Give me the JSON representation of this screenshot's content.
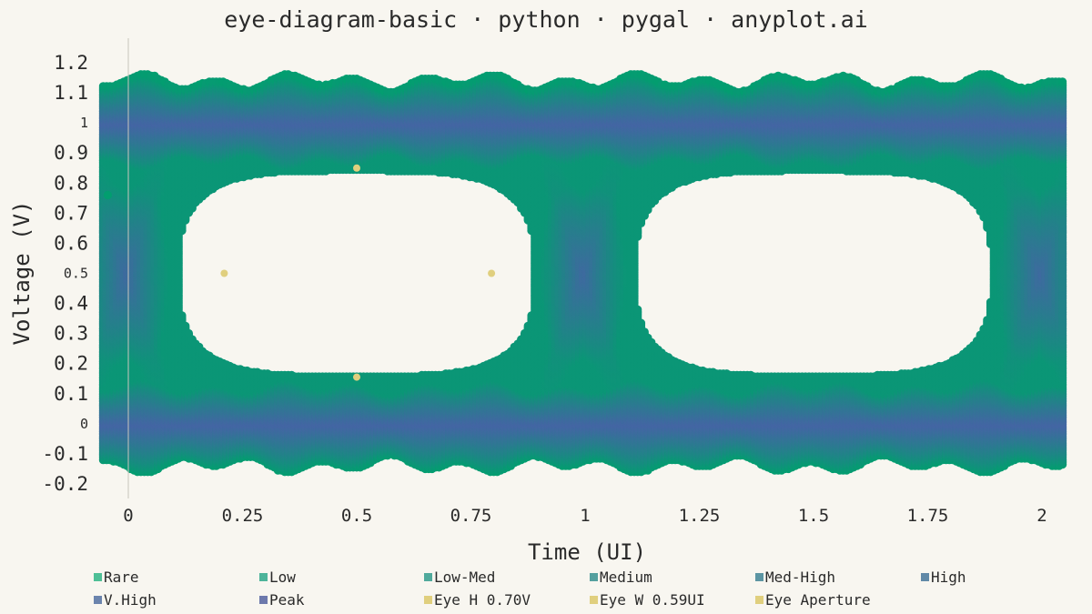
{
  "chart_data": {
    "type": "heatmap",
    "title": "eye-diagram-basic · python · pygal · anyplot.ai",
    "xlabel": "Time (UI)",
    "ylabel": "Voltage (V)",
    "xlim": [
      0,
      2
    ],
    "ylim": [
      -0.2,
      1.2
    ],
    "x_ticks": [
      {
        "value": 0,
        "label": "0"
      },
      {
        "value": 0.25,
        "label": "0.25"
      },
      {
        "value": 0.5,
        "label": "0.5"
      },
      {
        "value": 0.75,
        "label": "0.75"
      },
      {
        "value": 1,
        "label": "1"
      },
      {
        "value": 1.25,
        "label": "1.25"
      },
      {
        "value": 1.5,
        "label": "1.5"
      },
      {
        "value": 1.75,
        "label": "1.75"
      },
      {
        "value": 2,
        "label": "2"
      }
    ],
    "y_ticks": [
      {
        "value": 1.2,
        "label": "1.2",
        "major": true
      },
      {
        "value": 1.1,
        "label": "1.1",
        "major": true
      },
      {
        "value": 1.0,
        "label": "1",
        "major": false
      },
      {
        "value": 0.9,
        "label": "0.9",
        "major": true
      },
      {
        "value": 0.8,
        "label": "0.8",
        "major": true
      },
      {
        "value": 0.7,
        "label": "0.7",
        "major": true
      },
      {
        "value": 0.6,
        "label": "0.6",
        "major": true
      },
      {
        "value": 0.5,
        "label": "0.5",
        "major": false
      },
      {
        "value": 0.4,
        "label": "0.4",
        "major": true
      },
      {
        "value": 0.3,
        "label": "0.3",
        "major": true
      },
      {
        "value": 0.2,
        "label": "0.2",
        "major": true
      },
      {
        "value": 0.1,
        "label": "0.1",
        "major": true
      },
      {
        "value": 0.0,
        "label": "0",
        "major": false
      },
      {
        "value": -0.1,
        "label": "-0.1",
        "major": true
      },
      {
        "value": -0.2,
        "label": "-0.2",
        "major": true
      }
    ],
    "density_levels": [
      {
        "name": "Rare",
        "color": "#4ebf96"
      },
      {
        "name": "Low",
        "color": "#4db49a"
      },
      {
        "name": "Low-Med",
        "color": "#50aa9c"
      },
      {
        "name": "Medium",
        "color": "#55a09f"
      },
      {
        "name": "Med-High",
        "color": "#5c95a3"
      },
      {
        "name": "High",
        "color": "#6189a7"
      },
      {
        "name": "V.High",
        "color": "#6b84ad"
      },
      {
        "name": "Peak",
        "color": "#6d79ac"
      }
    ],
    "heatmap_colors": {
      "low": "#029e6f",
      "high": "#4465a4"
    },
    "eye_markers": {
      "name": "Eye Aperture",
      "color": "#e0cf7e",
      "points": [
        {
          "x": 0.5,
          "y": 0.85
        },
        {
          "x": 0.5,
          "y": 0.155
        },
        {
          "x": 0.21,
          "y": 0.5
        },
        {
          "x": 0.795,
          "y": 0.5
        }
      ]
    },
    "annotations": {
      "eye_height": "Eye H 0.70V",
      "eye_width": "Eye W 0.59UI"
    },
    "legend_position": "bottom",
    "grid": false
  }
}
